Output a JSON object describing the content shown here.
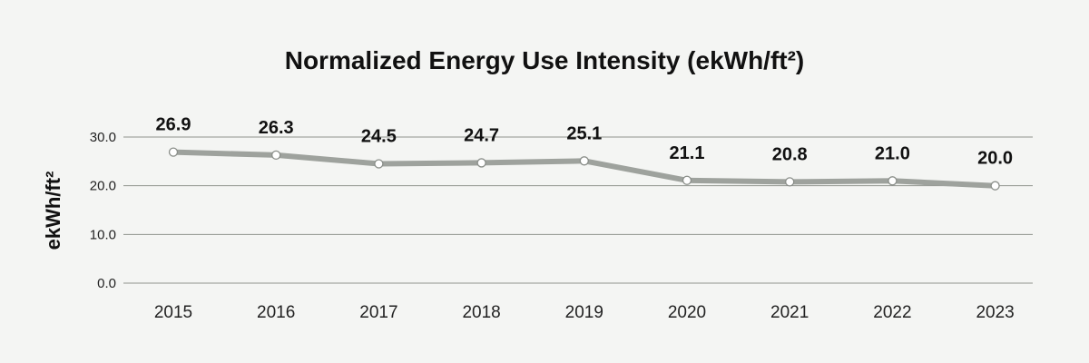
{
  "chart_data": {
    "type": "line",
    "title": "Normalized Energy Use Intensity (ekWh/ft²)",
    "xlabel": "",
    "ylabel": "ekWh/ft²",
    "categories": [
      "2015",
      "2016",
      "2017",
      "2018",
      "2019",
      "2020",
      "2021",
      "2022",
      "2023"
    ],
    "series": [
      {
        "values": [
          26.9,
          26.3,
          24.5,
          24.7,
          25.1,
          21.1,
          20.8,
          21.0,
          20.0
        ],
        "labels": [
          "26.9",
          "26.3",
          "24.5",
          "24.7",
          "25.1",
          "21.1",
          "20.8",
          "21.0",
          "20.0"
        ],
        "color": "#9ea29d"
      }
    ],
    "yticks": [
      "0.0",
      "10.0",
      "20.0",
      "30.0"
    ],
    "ytick_values": [
      0,
      10,
      20,
      30
    ],
    "ylim": [
      0,
      30
    ],
    "grid": true,
    "legend": "none",
    "colors": {
      "background": "#f4f5f3",
      "gridline": "#8f938e",
      "line": "#9ea29d",
      "marker_fill": "#ffffff",
      "marker_stroke": "#8a8e89",
      "text": "#111111"
    }
  }
}
